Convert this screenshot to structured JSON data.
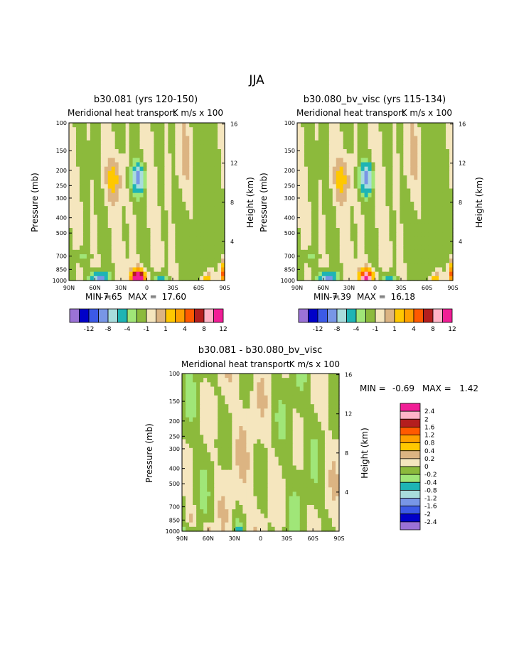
{
  "figure": {
    "main_title": "JJA"
  },
  "chart_data": [
    {
      "type": "heatmap",
      "title": "b30.081 (yrs 120-150)",
      "subtitle_left": "Meridional heat transport",
      "subtitle_right": "K m/s x 100",
      "ylabel": "Pressure (mb)",
      "ylabel_right": "Height (km)",
      "x_ticks": [
        "90N",
        "60N",
        "30N",
        "0",
        "30S",
        "60S",
        "90S"
      ],
      "y_ticks": [
        100,
        150,
        200,
        250,
        300,
        400,
        500,
        700,
        850,
        1000
      ],
      "height_ticks": [
        16,
        12,
        8,
        4
      ],
      "min_label": "MIN =",
      "min_value": "-7.65",
      "max_label": "MAX =",
      "max_value": "17.60",
      "colorbar_labels": [
        "-12",
        "-8",
        "-4",
        "-1",
        "1",
        "4",
        "8",
        "12"
      ],
      "features": [
        {
          "lat": 10,
          "p": 900,
          "value": 17.6
        },
        {
          "lat": 10,
          "p": 230,
          "value": -6
        },
        {
          "lat": 55,
          "p": 960,
          "value": -7.65
        },
        {
          "lat": -15,
          "p": 970,
          "value": -4
        },
        {
          "lat": 38,
          "p": 240,
          "value": 2
        }
      ]
    },
    {
      "type": "heatmap",
      "title": "b30.080_bv_visc (yrs 115-134)",
      "subtitle_left": "Meridional heat transport",
      "subtitle_right": "K m/s x 100",
      "ylabel": "Pressure (mb)",
      "ylabel_right": "Height (km)",
      "x_ticks": [
        "90N",
        "60N",
        "30N",
        "0",
        "30S",
        "60S",
        "90S"
      ],
      "y_ticks": [
        100,
        150,
        200,
        250,
        300,
        400,
        500,
        700,
        850,
        1000
      ],
      "height_ticks": [
        16,
        12,
        8,
        4
      ],
      "min_label": "MIN =",
      "min_value": "-7.39",
      "max_label": "MAX =",
      "max_value": "16.18",
      "colorbar_labels": [
        "-12",
        "-8",
        "-4",
        "-1",
        "1",
        "4",
        "8",
        "12"
      ],
      "features": [
        {
          "lat": 10,
          "p": 900,
          "value": 16.18
        },
        {
          "lat": 10,
          "p": 230,
          "value": -6.5
        },
        {
          "lat": 55,
          "p": 960,
          "value": -7.39
        },
        {
          "lat": -15,
          "p": 970,
          "value": -4
        },
        {
          "lat": 38,
          "p": 240,
          "value": 2
        }
      ]
    },
    {
      "type": "heatmap",
      "title": "b30.081 - b30.080_bv_visc",
      "subtitle_left": "Meridional heat transport",
      "subtitle_right": "K m/s x 100",
      "ylabel": "Pressure (mb)",
      "ylabel_right": "Height (km)",
      "x_ticks": [
        "90N",
        "60N",
        "30N",
        "0",
        "30S",
        "60S",
        "90S"
      ],
      "y_ticks": [
        100,
        150,
        200,
        250,
        300,
        400,
        500,
        700,
        850,
        1000
      ],
      "height_ticks": [
        16,
        12,
        8,
        4
      ],
      "min_label": "MIN =",
      "min_value": "-0.69",
      "max_label": "MAX =",
      "max_value": "1.42",
      "colorbar_labels": [
        "2.4",
        "2",
        "1.6",
        "1.2",
        "0.8",
        "0.4",
        "0.2",
        "0",
        "-0.2",
        "-0.4",
        "-0.8",
        "-1.2",
        "-1.6",
        "-2",
        "-2.4"
      ]
    }
  ],
  "colors": {
    "scale_colors": [
      "#9b72d6",
      "#0000c8",
      "#3c5ae6",
      "#7896e6",
      "#a8dcdc",
      "#1eb4b4",
      "#a0e678",
      "#8cba3c",
      "#f5e6be",
      "#dcb482",
      "#ffc800",
      "#ffa000",
      "#ff5a00",
      "#b41e1e",
      "#ffb4c8",
      "#f01e96"
    ],
    "diff_colors": [
      "#f01e96",
      "#ffb4c8",
      "#b41e1e",
      "#ff5a00",
      "#ffa000",
      "#ffc800",
      "#dcb482",
      "#f5e6be",
      "#8cba3c",
      "#a0e678",
      "#1eb4b4",
      "#a8dcdc",
      "#7896e6",
      "#3c5ae6",
      "#0000c8",
      "#9b72d6"
    ]
  }
}
